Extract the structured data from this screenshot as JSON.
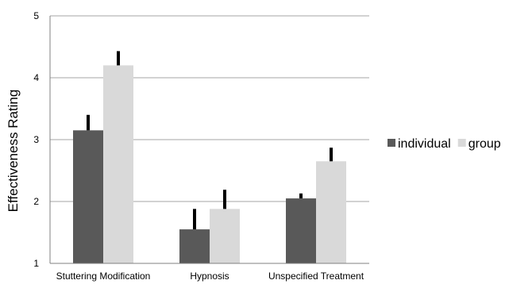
{
  "chart_data": {
    "type": "bar",
    "title": "",
    "xlabel": "",
    "ylabel": "Effectiveness Rating",
    "categories": [
      "Stuttering Modification",
      "Hypnosis",
      "Unspecified Treatment"
    ],
    "series": [
      {
        "name": "individual",
        "values": [
          3.15,
          1.55,
          2.05
        ],
        "error_upper": [
          3.4,
          1.88,
          2.13
        ],
        "color": "#595959"
      },
      {
        "name": "group",
        "values": [
          4.2,
          1.88,
          2.65
        ],
        "error_upper": [
          4.43,
          2.19,
          2.87
        ],
        "color": "#d9d9d9"
      }
    ],
    "ylim": [
      1,
      5
    ],
    "yticks": [
      "1",
      "2",
      "3",
      "4",
      "5"
    ],
    "grid": true,
    "legend_position": "right",
    "error_bar_color": "#000000"
  }
}
